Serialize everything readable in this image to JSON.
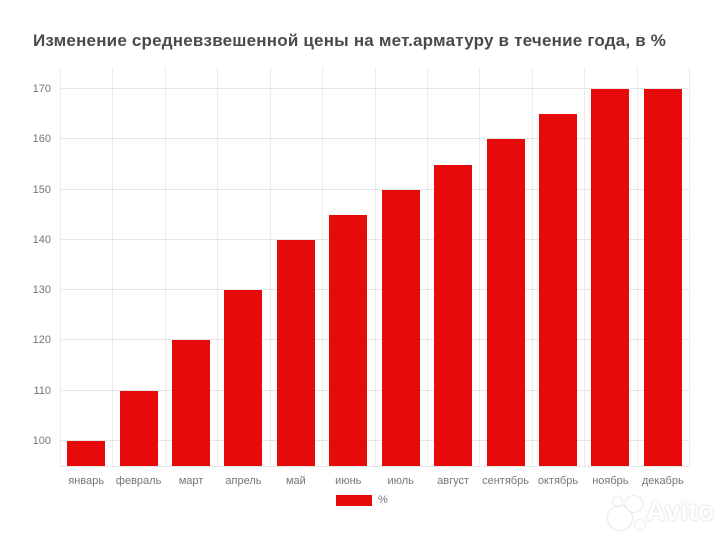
{
  "title": "Изменение средневзвешенной цены на мет.арматуру в течение года, в %",
  "chart_data": {
    "type": "bar",
    "title": "Изменение средневзвешенной цены на мет.арматуру в течение года, в %",
    "categories": [
      "январь",
      "февраль",
      "март",
      "апрель",
      "май",
      "июнь",
      "июль",
      "август",
      "сентябрь",
      "октябрь",
      "ноябрь",
      "декабрь"
    ],
    "values": [
      100,
      110,
      120,
      130,
      140,
      145,
      150,
      155,
      160,
      165,
      170,
      170
    ],
    "series_name": "%",
    "xlabel": "",
    "ylabel": "",
    "ylim": [
      95,
      174.4
    ],
    "yticks": [
      100,
      110,
      120,
      130,
      140,
      150,
      160,
      170
    ],
    "grid": true,
    "legend_position": "bottom"
  },
  "legend": {
    "label": "%"
  },
  "watermark": {
    "text": "Avito"
  },
  "colors": {
    "bar": "#e60a0a",
    "grid_horizontal": "#e6e6e6",
    "grid_vertical": "#ececec",
    "axis_text": "#757575",
    "title_text": "#4a4a4a"
  }
}
